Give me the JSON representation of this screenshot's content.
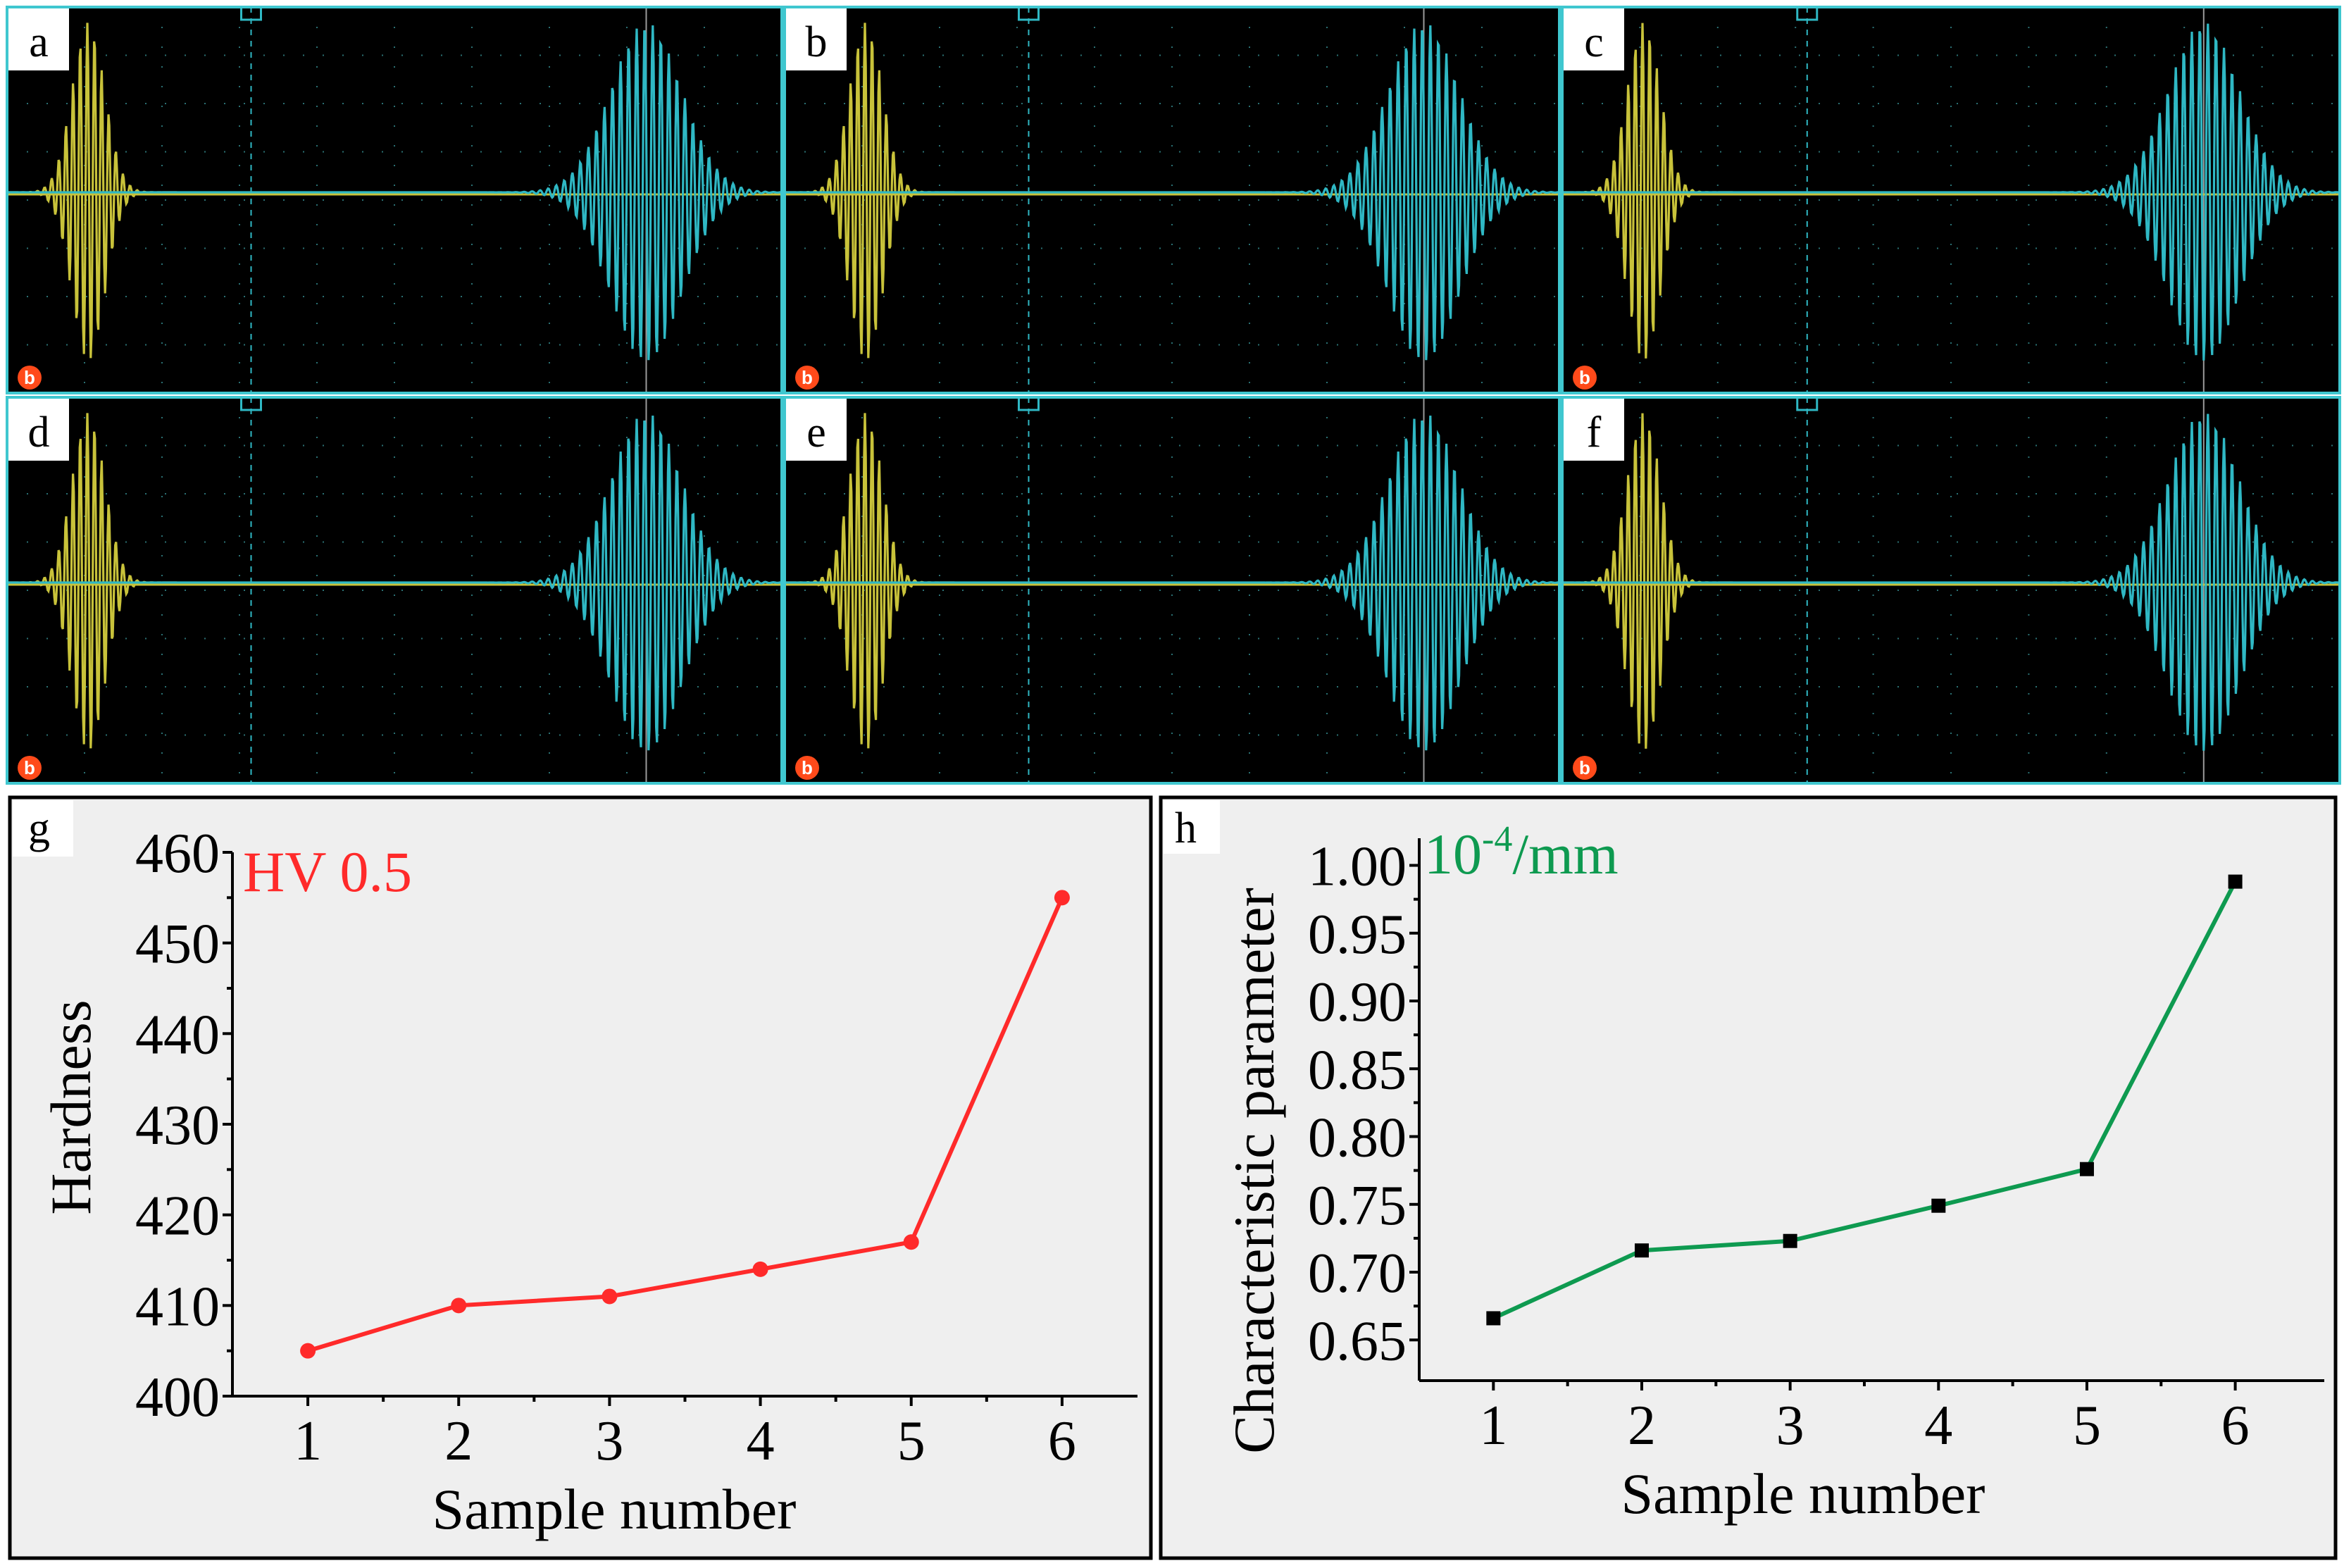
{
  "panels_osc": [
    {
      "label": "a",
      "marker": "b"
    },
    {
      "label": "b",
      "marker": "b"
    },
    {
      "label": "c",
      "marker": "b"
    },
    {
      "label": "d",
      "marker": "b"
    },
    {
      "label": "e",
      "marker": "b"
    },
    {
      "label": "f",
      "marker": "b"
    }
  ],
  "colors": {
    "signal_yellow": "#c8c23a",
    "signal_cyan": "#2fb8c4",
    "hardness_line": "#ff2a2a",
    "param_line": "#0e9a50",
    "marker_orange": "#ff4a1a"
  },
  "chart_data": [
    {
      "type": "line",
      "panel_label": "g",
      "annotation": "HV 0.5",
      "x": [
        1,
        2,
        3,
        4,
        5,
        6
      ],
      "values": [
        405,
        410,
        411,
        414,
        417,
        455
      ],
      "xlabel": "Sample number",
      "ylabel": "Hardness",
      "ylim": [
        400,
        460
      ],
      "yticks": [
        400,
        410,
        420,
        430,
        440,
        450,
        460
      ],
      "xticks": [
        1,
        2,
        3,
        4,
        5,
        6
      ]
    },
    {
      "type": "line",
      "panel_label": "h",
      "annotation_base": "10",
      "annotation_exp": "-4",
      "annotation_unit": "/mm",
      "x": [
        1,
        2,
        3,
        4,
        5,
        6
      ],
      "values": [
        0.666,
        0.716,
        0.723,
        0.749,
        0.776,
        0.988
      ],
      "xlabel": "Sample number",
      "ylabel": "Characteristic parameter",
      "ylim": [
        0.62,
        1.02
      ],
      "yticks": [
        "0.65",
        "0.70",
        "0.75",
        "0.80",
        "0.85",
        "0.90",
        "0.95",
        "1.00"
      ],
      "xticks": [
        1,
        2,
        3,
        4,
        5,
        6
      ]
    }
  ]
}
